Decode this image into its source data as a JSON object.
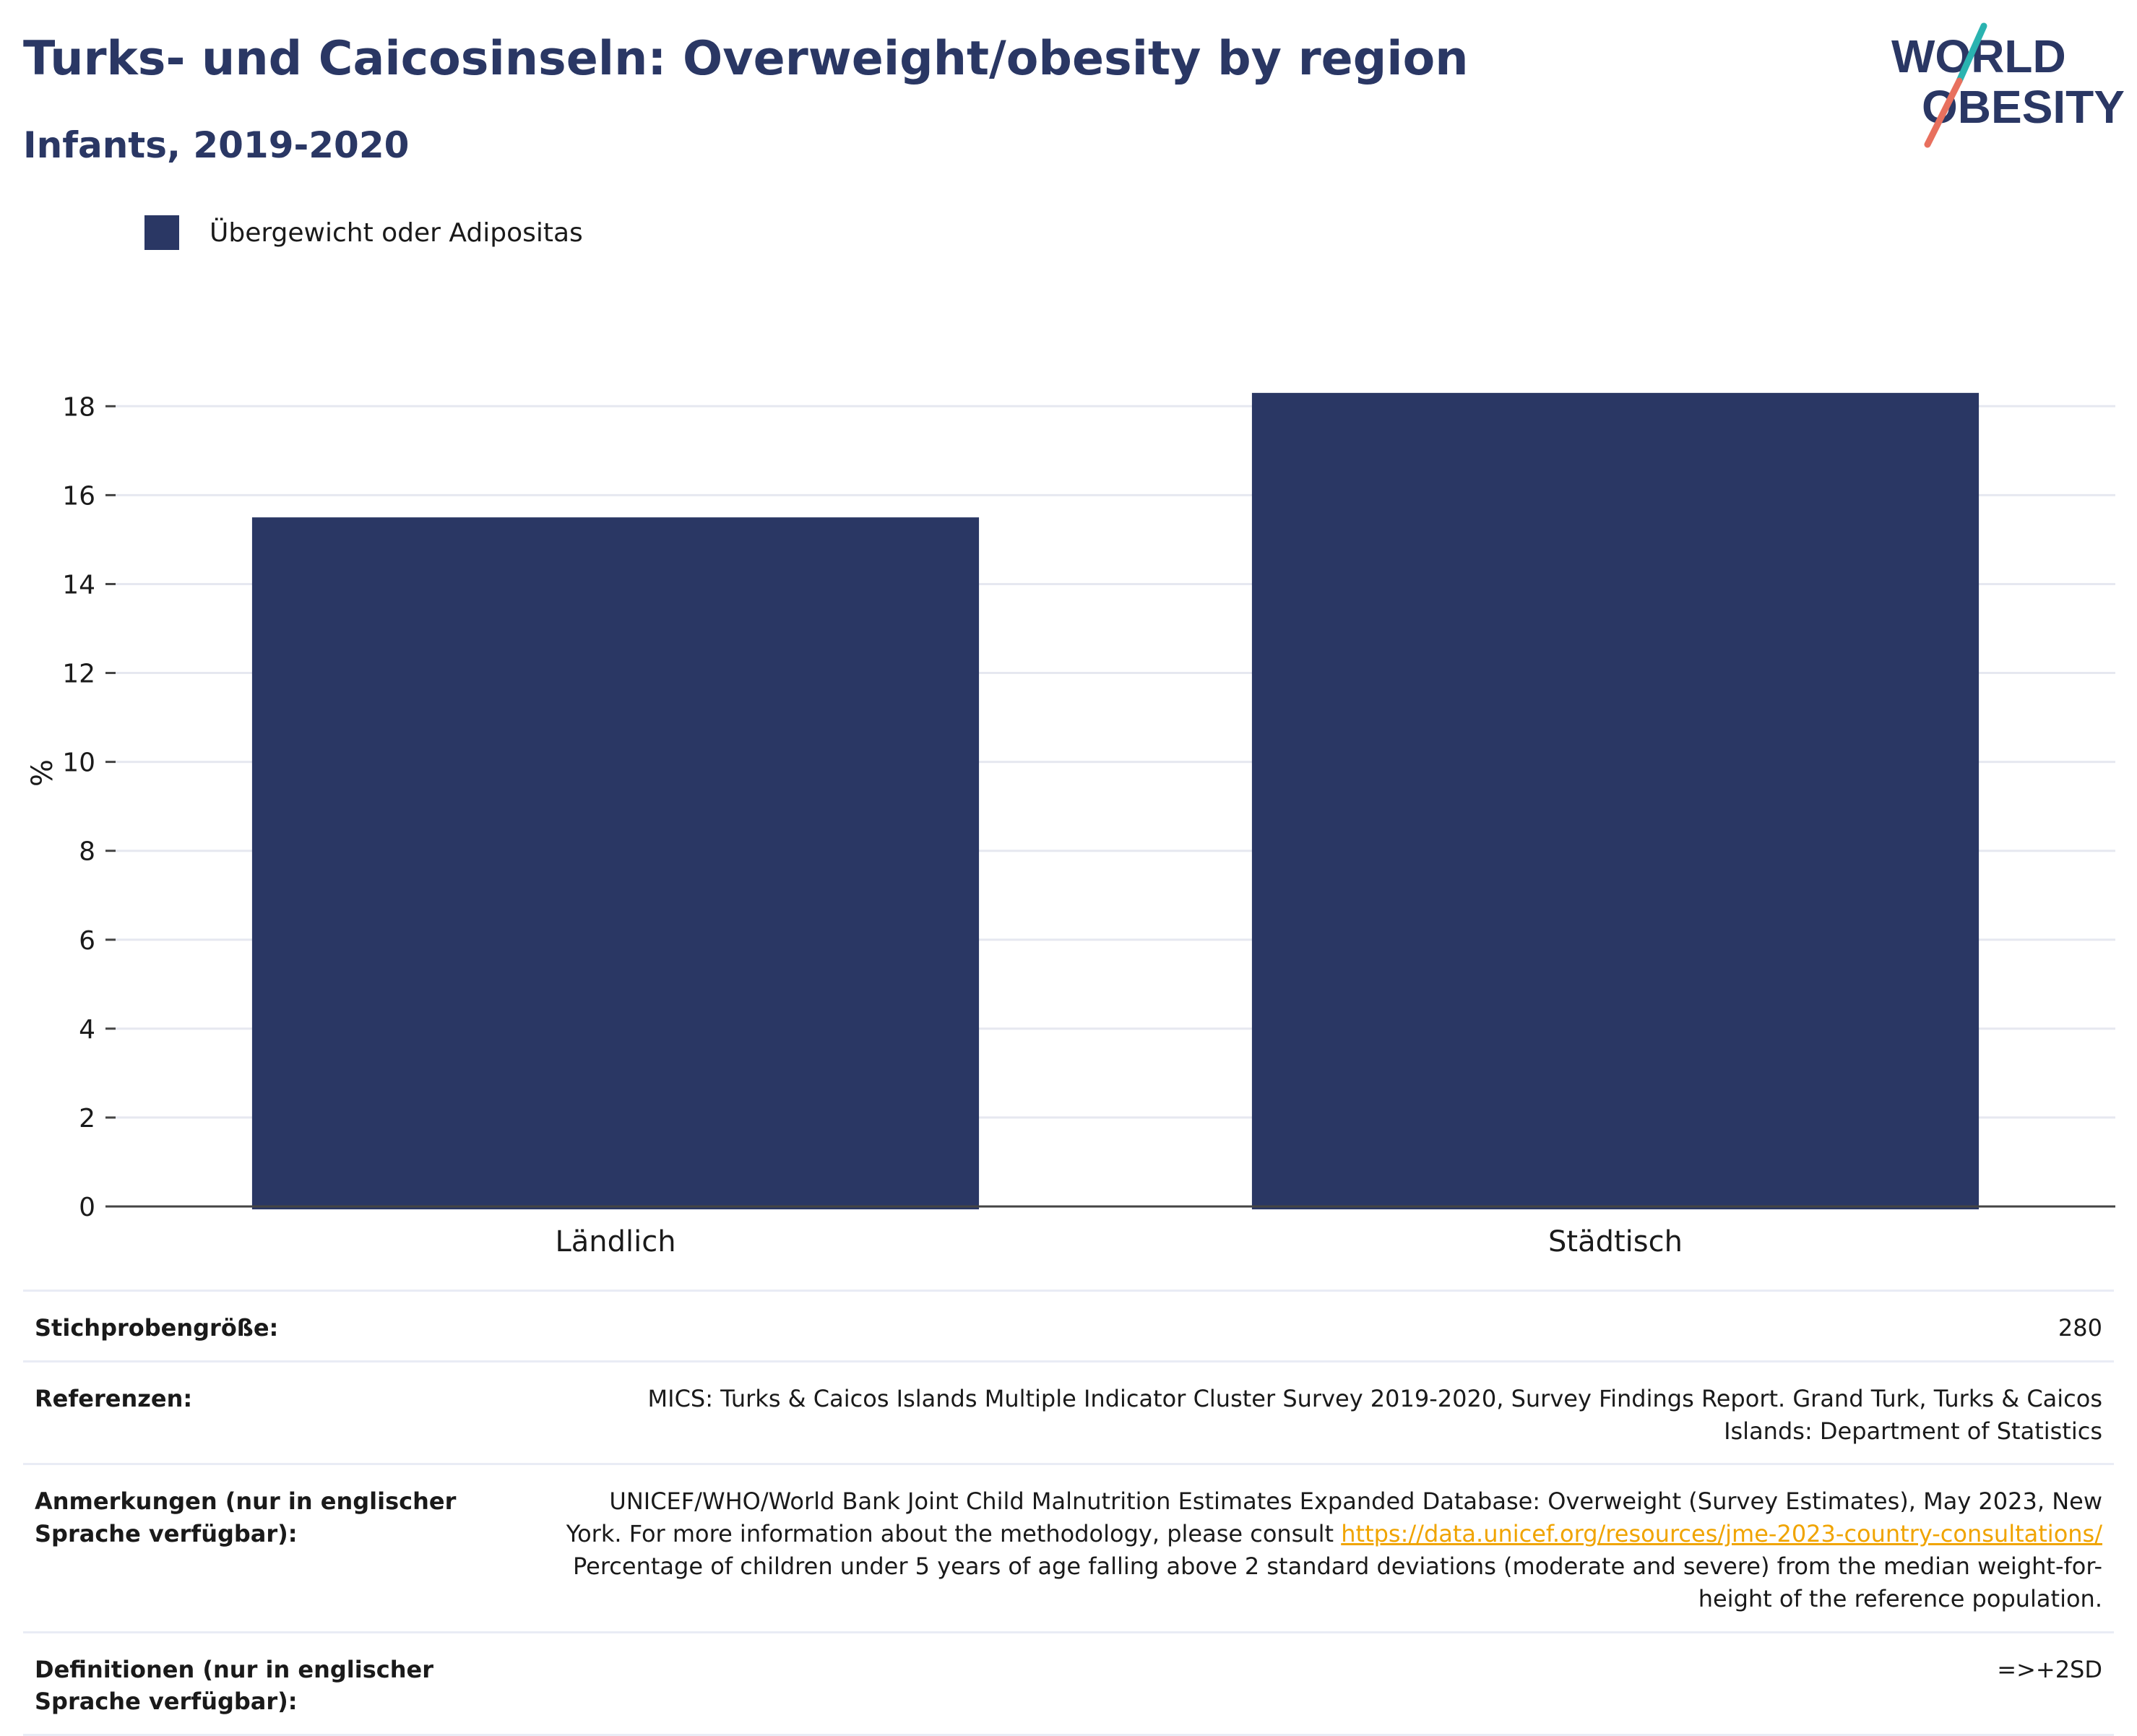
{
  "header": {
    "title": "Turks- und Caicosinseln: Overweight/obesity by region",
    "subtitle": "Infants, 2019-2020"
  },
  "logo": {
    "line1": "WORLD",
    "line2": "OBESITY"
  },
  "colors": {
    "bar": "#2a3764",
    "title": "#2a3764",
    "link": "#f0a400",
    "grid": "#e6e8f0"
  },
  "chart_data": {
    "type": "bar",
    "categories": [
      "Ländlich",
      "Städtisch"
    ],
    "series": [
      {
        "name": "Übergewicht oder Adipositas",
        "values": [
          15.5,
          18.3
        ]
      }
    ],
    "ylabel": "%",
    "xlabel": "",
    "ylim": [
      0,
      19.5
    ],
    "yticks": [
      0,
      2,
      4,
      6,
      8,
      10,
      12,
      14,
      16,
      18
    ],
    "grid": true,
    "legend": "top-left"
  },
  "info": {
    "sample_label": "Stichprobengröße:",
    "sample_value": "280",
    "refs_label": "Referenzen:",
    "refs_value": "MICS: Turks & Caicos Islands Multiple Indicator Cluster Survey 2019-2020, Survey Findings Report. Grand Turk, Turks & Caicos Islands: Department of Statistics",
    "notes_label": "Anmerkungen (nur in englischer Sprache verfügbar):",
    "notes_pre": "UNICEF/WHO/World Bank Joint Child Malnutrition Estimates Expanded Database: Overweight (Survey Estimates), May 2023, New York. For more information about the methodology, please consult ",
    "notes_link": "https://data.unicef.org/resources/jme-2023-country-consultations/",
    "notes_post": " Percentage of children under 5 years of age falling above 2 standard deviations (moderate and severe) from the median weight-for-height of the reference population.",
    "defs_label": "Definitionen (nur in englischer Sprache verfügbar):",
    "defs_value": "=>+2SD"
  }
}
